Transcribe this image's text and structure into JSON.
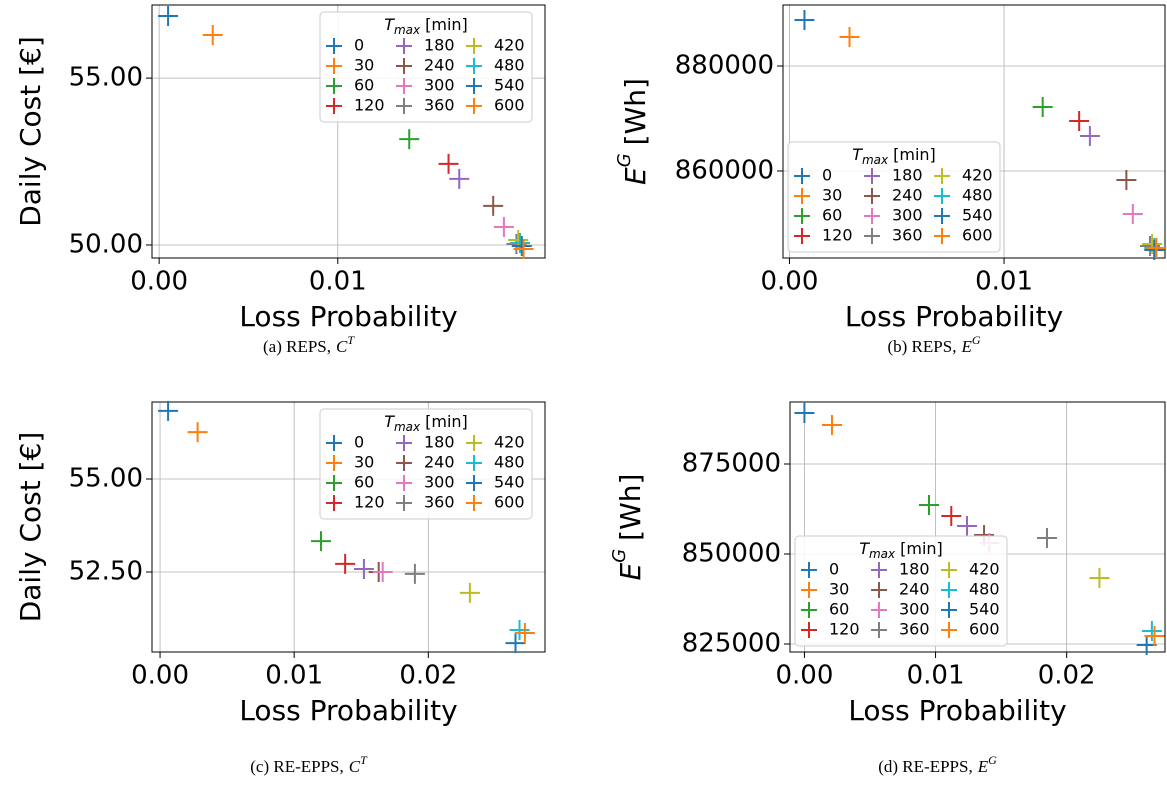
{
  "chart_data": [
    {
      "type": "scatter",
      "xlabel": "Loss Probability",
      "ylabel": "Daily Cost [€]",
      "caption": {
        "text": "(a) REPS,",
        "math": "C",
        "sup": "T"
      },
      "legend_title": {
        "main": "T",
        "sub": "max",
        "rest": "[min]"
      },
      "legend": "upper right",
      "grid": true,
      "xlim": [
        -0.0004,
        0.0216
      ],
      "ylim": [
        49.61,
        57.19
      ],
      "xticks": [
        {
          "value": 0,
          "label": "0.00"
        },
        {
          "value": 0.01,
          "label": "0.01"
        }
      ],
      "yticks": [
        {
          "value": 50,
          "label": "50.00"
        },
        {
          "value": 55,
          "label": "55.00"
        }
      ],
      "series": [
        {
          "name": "0",
          "color": "#1f77b4",
          "x": [
            0.0005
          ],
          "values": [
            56.86
          ]
        },
        {
          "name": "30",
          "color": "#ff7f0e",
          "x": [
            0.003
          ],
          "values": [
            56.29
          ]
        },
        {
          "name": "60",
          "color": "#2ca02c",
          "x": [
            0.014
          ],
          "values": [
            53.17
          ]
        },
        {
          "name": "120",
          "color": "#d62728",
          "x": [
            0.0162
          ],
          "values": [
            52.43
          ]
        },
        {
          "name": "180",
          "color": "#9467bd",
          "x": [
            0.0168
          ],
          "values": [
            51.98
          ]
        },
        {
          "name": "240",
          "color": "#8c564b",
          "x": [
            0.0187
          ],
          "values": [
            51.17
          ]
        },
        {
          "name": "300",
          "color": "#e377c2",
          "x": [
            0.0193
          ],
          "values": [
            50.54
          ]
        },
        {
          "name": "360",
          "color": "#7f7f7f",
          "x": [
            0.02
          ],
          "values": [
            50.03
          ]
        },
        {
          "name": "420",
          "color": "#bcbd22",
          "x": [
            0.0201
          ],
          "values": [
            50.15
          ]
        },
        {
          "name": "480",
          "color": "#17becf",
          "x": [
            0.0202
          ],
          "values": [
            50.06
          ]
        },
        {
          "name": "540",
          "color": "#1f77b4",
          "x": [
            0.0203
          ],
          "values": [
            49.97
          ]
        },
        {
          "name": "600",
          "color": "#ff7f0e",
          "x": [
            0.0204
          ],
          "values": [
            49.88
          ]
        }
      ]
    },
    {
      "type": "scatter",
      "xlabel": "Loss Probability",
      "ylabel": {
        "main": "E",
        "sup": "G",
        "rest": "[Wh]"
      },
      "caption": {
        "text": "(b) REPS,",
        "math": "E",
        "sup": "G"
      },
      "legend_title": {
        "main": "T",
        "sub": "max",
        "rest": "[min]"
      },
      "legend": "lower left",
      "grid": true,
      "xlim": [
        -0.0003,
        0.0175
      ],
      "ylim": [
        843429,
        891619
      ],
      "xticks": [
        {
          "value": 0,
          "label": "0.00"
        },
        {
          "value": 0.01,
          "label": "0.01"
        }
      ],
      "yticks": [
        860000,
        880000
      ],
      "series": [
        {
          "name": "0",
          "color": "#1f77b4",
          "x": [
            0.0007
          ],
          "values": [
            888762
          ]
        },
        {
          "name": "30",
          "color": "#ff7f0e",
          "x": [
            0.0028
          ],
          "values": [
            885524
          ]
        },
        {
          "name": "60",
          "color": "#2ca02c",
          "x": [
            0.0118
          ],
          "values": [
            872190
          ]
        },
        {
          "name": "120",
          "color": "#d62728",
          "x": [
            0.0135
          ],
          "values": [
            869524
          ]
        },
        {
          "name": "180",
          "color": "#9467bd",
          "x": [
            0.014
          ],
          "values": [
            866667
          ]
        },
        {
          "name": "240",
          "color": "#8c564b",
          "x": [
            0.0157
          ],
          "values": [
            858286
          ]
        },
        {
          "name": "300",
          "color": "#e377c2",
          "x": [
            0.016
          ],
          "values": [
            851810
          ]
        },
        {
          "name": "360",
          "color": "#7f7f7f",
          "x": [
            0.0168
          ],
          "values": [
            845714
          ]
        },
        {
          "name": "420",
          "color": "#bcbd22",
          "x": [
            0.0169
          ],
          "values": [
            846095
          ]
        },
        {
          "name": "480",
          "color": "#17becf",
          "x": [
            0.017
          ],
          "values": [
            845333
          ]
        },
        {
          "name": "540",
          "color": "#1f77b4",
          "x": [
            0.017
          ],
          "values": [
            844952
          ]
        },
        {
          "name": "600",
          "color": "#ff7f0e",
          "x": [
            0.0171
          ],
          "values": [
            845333
          ]
        }
      ]
    },
    {
      "type": "scatter",
      "xlabel": "Loss Probability",
      "ylabel": "Daily Cost [€]",
      "caption": {
        "text": "(c) RE-EPPS,",
        "math": "C",
        "sup": "T"
      },
      "legend_title": {
        "main": "T",
        "sub": "max",
        "rest": "[min]"
      },
      "legend": "upper right",
      "grid": true,
      "xlim": [
        -0.0006,
        0.0287
      ],
      "ylim": [
        50.35,
        57.07
      ],
      "xticks": [
        {
          "value": 0,
          "label": "0.00"
        },
        {
          "value": 0.01,
          "label": "0.01"
        },
        {
          "value": 0.02,
          "label": "0.02"
        }
      ],
      "yticks": [
        {
          "value": 52.5,
          "label": "52.50"
        },
        {
          "value": 55,
          "label": "55.00"
        }
      ],
      "series": [
        {
          "name": "0",
          "color": "#1f77b4",
          "x": [
            0.0006
          ],
          "values": [
            56.83
          ]
        },
        {
          "name": "30",
          "color": "#ff7f0e",
          "x": [
            0.0028
          ],
          "values": [
            56.26
          ]
        },
        {
          "name": "60",
          "color": "#2ca02c",
          "x": [
            0.012
          ],
          "values": [
            53.33
          ]
        },
        {
          "name": "120",
          "color": "#d62728",
          "x": [
            0.0138
          ],
          "values": [
            52.72
          ]
        },
        {
          "name": "180",
          "color": "#9467bd",
          "x": [
            0.0152
          ],
          "values": [
            52.58
          ]
        },
        {
          "name": "240",
          "color": "#8c564b",
          "x": [
            0.0163
          ],
          "values": [
            52.5
          ]
        },
        {
          "name": "300",
          "color": "#e377c2",
          "x": [
            0.0166
          ],
          "values": [
            52.5
          ]
        },
        {
          "name": "360",
          "color": "#7f7f7f",
          "x": [
            0.019
          ],
          "values": [
            52.45
          ]
        },
        {
          "name": "420",
          "color": "#bcbd22",
          "x": [
            0.0231
          ],
          "values": [
            51.94
          ]
        },
        {
          "name": "480",
          "color": "#17becf",
          "x": [
            0.0268
          ],
          "values": [
            50.94
          ]
        },
        {
          "name": "540",
          "color": "#1f77b4",
          "x": [
            0.0265
          ],
          "values": [
            50.59
          ]
        },
        {
          "name": "600",
          "color": "#ff7f0e",
          "x": [
            0.0272
          ],
          "values": [
            50.86
          ]
        }
      ]
    },
    {
      "type": "scatter",
      "xlabel": "Loss Probability",
      "ylabel": {
        "main": "E",
        "sup": "G",
        "rest": "[Wh]"
      },
      "caption": {
        "text": "(d) RE-EPPS,",
        "math": "E",
        "sup": "G"
      },
      "legend_title": {
        "main": "T",
        "sub": "max",
        "rest": "[min]"
      },
      "legend": "lower left",
      "grid": true,
      "xlim": [
        -0.0011,
        0.0275
      ],
      "ylim": [
        822778,
        892222
      ],
      "xticks": [
        {
          "value": 0,
          "label": "0.00"
        },
        {
          "value": 0.01,
          "label": "0.01"
        },
        {
          "value": 0.02,
          "label": "0.02"
        }
      ],
      "yticks": [
        825000,
        850000,
        875000
      ],
      "series": [
        {
          "name": "0",
          "color": "#1f77b4",
          "x": [
            0.0
          ],
          "values": [
            889167
          ]
        },
        {
          "name": "30",
          "color": "#ff7f0e",
          "x": [
            0.0021
          ],
          "values": [
            885833
          ]
        },
        {
          "name": "60",
          "color": "#2ca02c",
          "x": [
            0.0095
          ],
          "values": [
            863611
          ]
        },
        {
          "name": "120",
          "color": "#d62728",
          "x": [
            0.0112
          ],
          "values": [
            860556
          ]
        },
        {
          "name": "180",
          "color": "#9467bd",
          "x": [
            0.0124
          ],
          "values": [
            857778
          ]
        },
        {
          "name": "240",
          "color": "#8c564b",
          "x": [
            0.0137
          ],
          "values": [
            855278
          ]
        },
        {
          "name": "300",
          "color": "#e377c2",
          "x": [
            0.0141
          ],
          "values": [
            853056
          ]
        },
        {
          "name": "360",
          "color": "#7f7f7f",
          "x": [
            0.0185
          ],
          "values": [
            854444
          ]
        },
        {
          "name": "420",
          "color": "#bcbd22",
          "x": [
            0.0225
          ],
          "values": [
            843333
          ]
        },
        {
          "name": "480",
          "color": "#17becf",
          "x": [
            0.0265
          ],
          "values": [
            828611
          ]
        },
        {
          "name": "540",
          "color": "#1f77b4",
          "x": [
            0.0261
          ],
          "values": [
            824722
          ]
        },
        {
          "name": "600",
          "color": "#ff7f0e",
          "x": [
            0.0267
          ],
          "values": [
            827222
          ]
        }
      ]
    }
  ]
}
